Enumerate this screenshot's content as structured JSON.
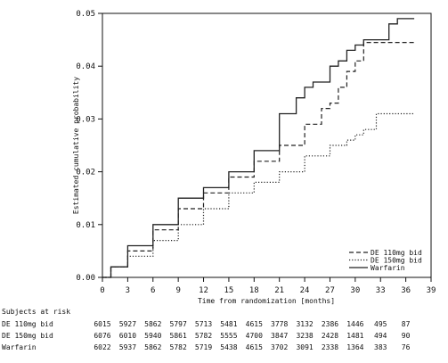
{
  "chart_data": {
    "type": "line",
    "xlabel": "Time from randomization [months]",
    "ylabel": "Estimated cumulative probability",
    "xlim": [
      0,
      39
    ],
    "ylim": [
      0,
      0.05
    ],
    "x_ticks": [
      "0",
      "3",
      "6",
      "9",
      "12",
      "15",
      "18",
      "21",
      "24",
      "27",
      "30",
      "33",
      "36",
      "39"
    ],
    "y_ticks": [
      "0.00",
      "0.01",
      "0.02",
      "0.03",
      "0.04",
      "0.05"
    ],
    "legend_position": "bottom-right",
    "series": [
      {
        "name": "DE 110mg bid",
        "line_style": "dashed",
        "color": "#222222",
        "x": [
          0,
          1,
          3,
          6,
          9,
          12,
          15,
          18,
          21,
          24,
          26,
          27,
          28,
          29,
          30,
          31,
          33,
          36,
          37
        ],
        "y": [
          0,
          0.002,
          0.005,
          0.009,
          0.013,
          0.016,
          0.019,
          0.022,
          0.025,
          0.029,
          0.032,
          0.033,
          0.036,
          0.039,
          0.041,
          0.0445,
          0.0445,
          0.0445,
          0.0445
        ]
      },
      {
        "name": "DE 150mg bid",
        "line_style": "dotted",
        "color": "#222222",
        "x": [
          0,
          1,
          3,
          6,
          9,
          12,
          15,
          18,
          21,
          24,
          27,
          29,
          30,
          31,
          32,
          32.5,
          33,
          36,
          37
        ],
        "y": [
          0,
          0.002,
          0.004,
          0.007,
          0.01,
          0.013,
          0.016,
          0.018,
          0.02,
          0.023,
          0.025,
          0.026,
          0.027,
          0.028,
          0.028,
          0.031,
          0.031,
          0.031,
          0.031
        ]
      },
      {
        "name": "Warfarin",
        "line_style": "solid",
        "color": "#222222",
        "x": [
          0,
          1,
          3,
          6,
          9,
          12,
          15,
          18,
          21,
          23,
          24,
          25,
          27,
          28,
          29,
          30,
          31,
          33,
          34,
          35,
          36,
          37
        ],
        "y": [
          0,
          0.002,
          0.006,
          0.01,
          0.015,
          0.017,
          0.02,
          0.024,
          0.031,
          0.034,
          0.036,
          0.037,
          0.04,
          0.041,
          0.043,
          0.044,
          0.045,
          0.045,
          0.048,
          0.049,
          0.049,
          0.049
        ]
      }
    ],
    "risk_table": {
      "title": "Subjects at risk",
      "rows": [
        {
          "label": "DE 110mg bid",
          "values": [
            "6015",
            "5927",
            "5862",
            "5797",
            "5713",
            "5481",
            "4615",
            "3778",
            "3132",
            "2386",
            "1446",
            "495",
            "87"
          ]
        },
        {
          "label": "DE 150mg bid",
          "values": [
            "6076",
            "6010",
            "5940",
            "5861",
            "5782",
            "5555",
            "4700",
            "3847",
            "3238",
            "2428",
            "1481",
            "494",
            "90"
          ]
        },
        {
          "label": "Warfarin",
          "values": [
            "6022",
            "5937",
            "5862",
            "5782",
            "5719",
            "5438",
            "4615",
            "3702",
            "3091",
            "2338",
            "1364",
            "383",
            "76"
          ]
        }
      ]
    }
  }
}
